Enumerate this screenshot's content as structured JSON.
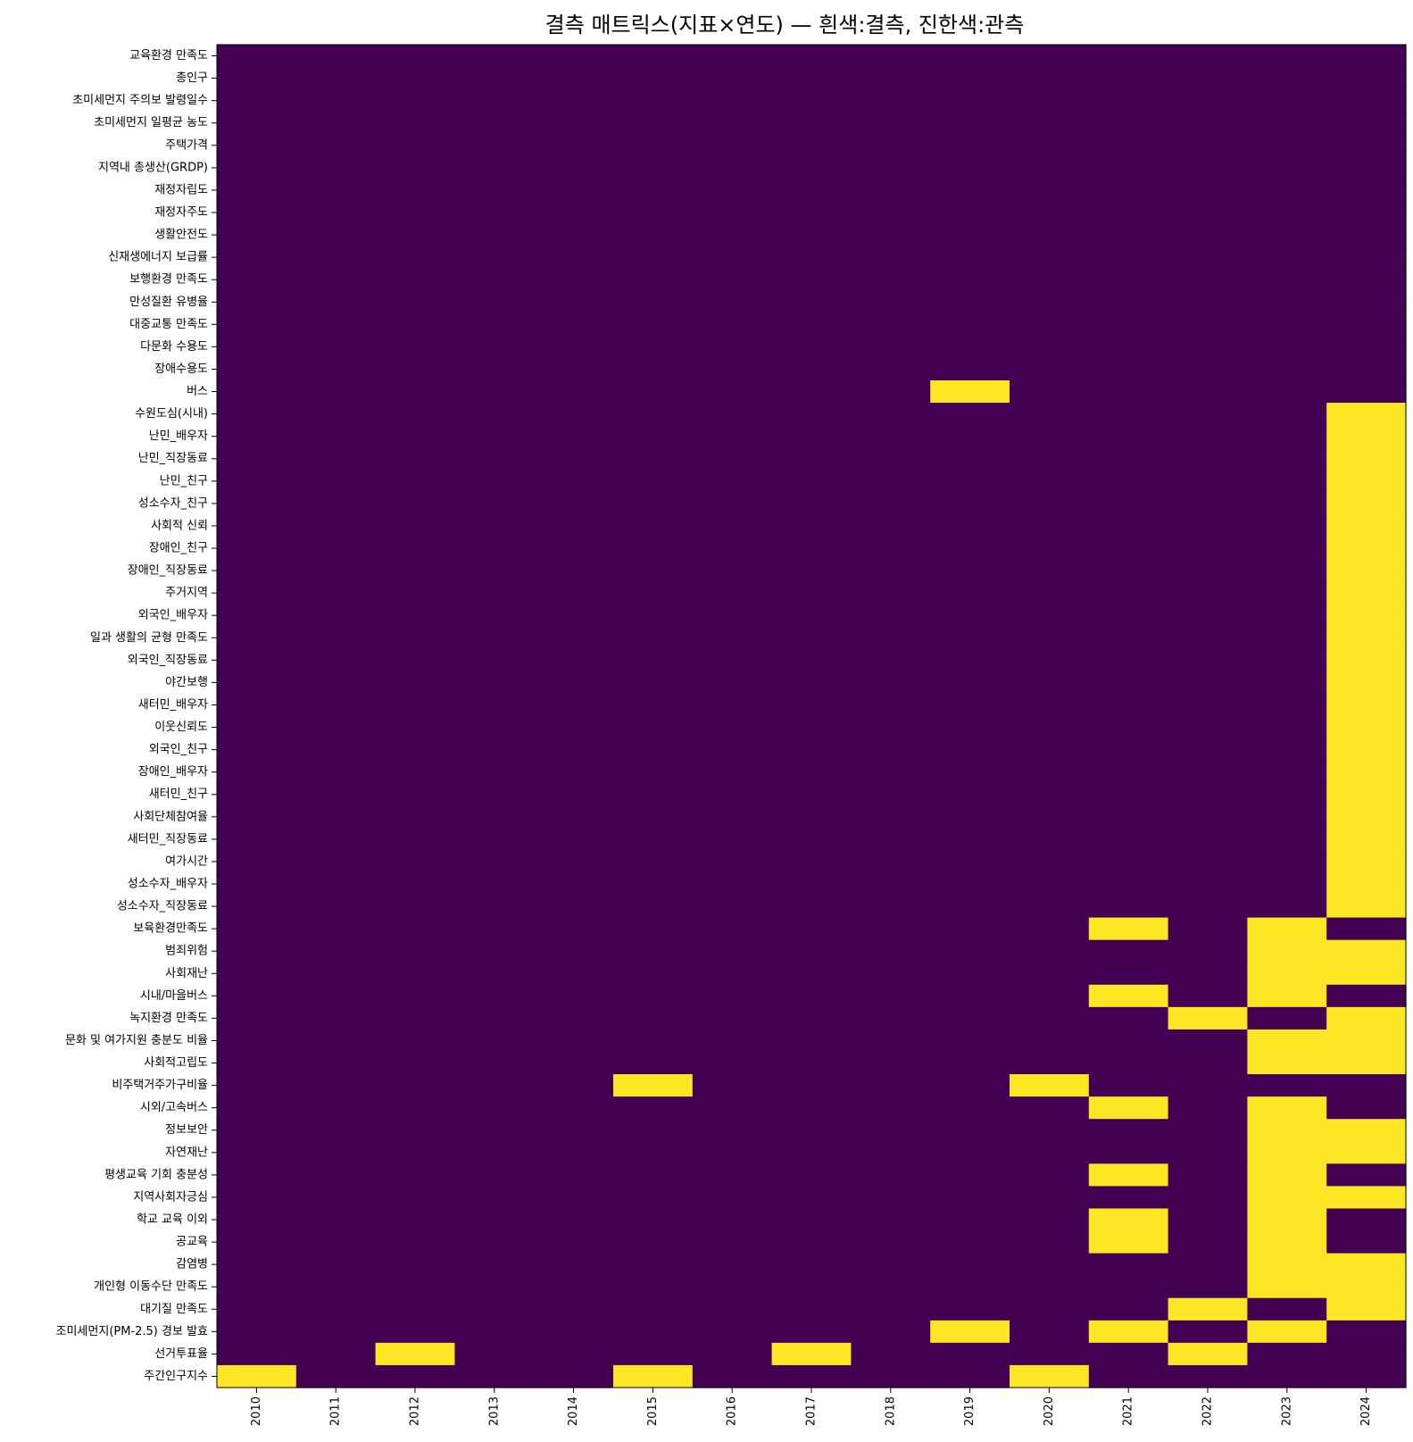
{
  "chart_data": {
    "type": "heatmap",
    "title": "결측 매트릭스(지표×연도) — 흰색:결측, 진한색:관측",
    "xlabel": "",
    "ylabel": "",
    "colors": {
      "observed": "#440154",
      "missing": "#fde725"
    },
    "x": [
      "2010",
      "2011",
      "2012",
      "2013",
      "2014",
      "2015",
      "2016",
      "2017",
      "2018",
      "2019",
      "2020",
      "2021",
      "2022",
      "2023",
      "2024"
    ],
    "y": [
      "교육환경 만족도",
      "총인구",
      "초미세먼지 주의보 발령일수",
      "초미세먼지 일평균 농도",
      "주택가격",
      "지역내 총생산(GRDP)",
      "재정자립도",
      "재정자주도",
      "생활안전도",
      "신재생에너지 보급률",
      "보행환경 만족도",
      "만성질환 유병율",
      "대중교통 만족도",
      "다문화 수용도",
      "장애수용도",
      "버스",
      "수원도심(시내)",
      "난민_배우자",
      "난민_직장동료",
      "난민_친구",
      "성소수자_친구",
      "사회적 신뢰",
      "장애인_친구",
      "장애인_직장동료",
      "주거지역",
      "외국인_배우자",
      "일과 생활의 균형 만족도",
      "외국인_직장동료",
      "야간보행",
      "새터민_배우자",
      "이웃신뢰도",
      "외국인_친구",
      "장애인_배우자",
      "새터민_친구",
      "사회단체참여율",
      "새터민_직장동료",
      "여가시간",
      "성소수자_배우자",
      "성소수자_직장동료",
      "보육환경만족도",
      "범죄위험",
      "사회재난",
      "시내/마을버스",
      "녹지환경 만족도",
      "문화 및 여가지원 충분도 비율",
      "사회적고립도",
      "비주택거주가구비율",
      "시외/고속버스",
      "정보보안",
      "자연재난",
      "평생교육 기회 충분성",
      "지역사회자긍심",
      "학교 교육 이외",
      "공교육",
      "감염병",
      "개인형 이동수단 만족도",
      "대기질 만족도",
      "조미세먼지(PM-2.5) 경보 발효",
      "선거투표율",
      "주간인구지수"
    ],
    "missing": [
      [
        0,
        0,
        0,
        0,
        0,
        0,
        0,
        0,
        0,
        0,
        0,
        0,
        0,
        0,
        0
      ],
      [
        0,
        0,
        0,
        0,
        0,
        0,
        0,
        0,
        0,
        0,
        0,
        0,
        0,
        0,
        0
      ],
      [
        0,
        0,
        0,
        0,
        0,
        0,
        0,
        0,
        0,
        0,
        0,
        0,
        0,
        0,
        0
      ],
      [
        0,
        0,
        0,
        0,
        0,
        0,
        0,
        0,
        0,
        0,
        0,
        0,
        0,
        0,
        0
      ],
      [
        0,
        0,
        0,
        0,
        0,
        0,
        0,
        0,
        0,
        0,
        0,
        0,
        0,
        0,
        0
      ],
      [
        0,
        0,
        0,
        0,
        0,
        0,
        0,
        0,
        0,
        0,
        0,
        0,
        0,
        0,
        0
      ],
      [
        0,
        0,
        0,
        0,
        0,
        0,
        0,
        0,
        0,
        0,
        0,
        0,
        0,
        0,
        0
      ],
      [
        0,
        0,
        0,
        0,
        0,
        0,
        0,
        0,
        0,
        0,
        0,
        0,
        0,
        0,
        0
      ],
      [
        0,
        0,
        0,
        0,
        0,
        0,
        0,
        0,
        0,
        0,
        0,
        0,
        0,
        0,
        0
      ],
      [
        0,
        0,
        0,
        0,
        0,
        0,
        0,
        0,
        0,
        0,
        0,
        0,
        0,
        0,
        0
      ],
      [
        0,
        0,
        0,
        0,
        0,
        0,
        0,
        0,
        0,
        0,
        0,
        0,
        0,
        0,
        0
      ],
      [
        0,
        0,
        0,
        0,
        0,
        0,
        0,
        0,
        0,
        0,
        0,
        0,
        0,
        0,
        0
      ],
      [
        0,
        0,
        0,
        0,
        0,
        0,
        0,
        0,
        0,
        0,
        0,
        0,
        0,
        0,
        0
      ],
      [
        0,
        0,
        0,
        0,
        0,
        0,
        0,
        0,
        0,
        0,
        0,
        0,
        0,
        0,
        0
      ],
      [
        0,
        0,
        0,
        0,
        0,
        0,
        0,
        0,
        0,
        0,
        0,
        0,
        0,
        0,
        0
      ],
      [
        0,
        0,
        0,
        0,
        0,
        0,
        0,
        0,
        0,
        1,
        0,
        0,
        0,
        0,
        0
      ],
      [
        0,
        0,
        0,
        0,
        0,
        0,
        0,
        0,
        0,
        0,
        0,
        0,
        0,
        0,
        1
      ],
      [
        0,
        0,
        0,
        0,
        0,
        0,
        0,
        0,
        0,
        0,
        0,
        0,
        0,
        0,
        1
      ],
      [
        0,
        0,
        0,
        0,
        0,
        0,
        0,
        0,
        0,
        0,
        0,
        0,
        0,
        0,
        1
      ],
      [
        0,
        0,
        0,
        0,
        0,
        0,
        0,
        0,
        0,
        0,
        0,
        0,
        0,
        0,
        1
      ],
      [
        0,
        0,
        0,
        0,
        0,
        0,
        0,
        0,
        0,
        0,
        0,
        0,
        0,
        0,
        1
      ],
      [
        0,
        0,
        0,
        0,
        0,
        0,
        0,
        0,
        0,
        0,
        0,
        0,
        0,
        0,
        1
      ],
      [
        0,
        0,
        0,
        0,
        0,
        0,
        0,
        0,
        0,
        0,
        0,
        0,
        0,
        0,
        1
      ],
      [
        0,
        0,
        0,
        0,
        0,
        0,
        0,
        0,
        0,
        0,
        0,
        0,
        0,
        0,
        1
      ],
      [
        0,
        0,
        0,
        0,
        0,
        0,
        0,
        0,
        0,
        0,
        0,
        0,
        0,
        0,
        1
      ],
      [
        0,
        0,
        0,
        0,
        0,
        0,
        0,
        0,
        0,
        0,
        0,
        0,
        0,
        0,
        1
      ],
      [
        0,
        0,
        0,
        0,
        0,
        0,
        0,
        0,
        0,
        0,
        0,
        0,
        0,
        0,
        1
      ],
      [
        0,
        0,
        0,
        0,
        0,
        0,
        0,
        0,
        0,
        0,
        0,
        0,
        0,
        0,
        1
      ],
      [
        0,
        0,
        0,
        0,
        0,
        0,
        0,
        0,
        0,
        0,
        0,
        0,
        0,
        0,
        1
      ],
      [
        0,
        0,
        0,
        0,
        0,
        0,
        0,
        0,
        0,
        0,
        0,
        0,
        0,
        0,
        1
      ],
      [
        0,
        0,
        0,
        0,
        0,
        0,
        0,
        0,
        0,
        0,
        0,
        0,
        0,
        0,
        1
      ],
      [
        0,
        0,
        0,
        0,
        0,
        0,
        0,
        0,
        0,
        0,
        0,
        0,
        0,
        0,
        1
      ],
      [
        0,
        0,
        0,
        0,
        0,
        0,
        0,
        0,
        0,
        0,
        0,
        0,
        0,
        0,
        1
      ],
      [
        0,
        0,
        0,
        0,
        0,
        0,
        0,
        0,
        0,
        0,
        0,
        0,
        0,
        0,
        1
      ],
      [
        0,
        0,
        0,
        0,
        0,
        0,
        0,
        0,
        0,
        0,
        0,
        0,
        0,
        0,
        1
      ],
      [
        0,
        0,
        0,
        0,
        0,
        0,
        0,
        0,
        0,
        0,
        0,
        0,
        0,
        0,
        1
      ],
      [
        0,
        0,
        0,
        0,
        0,
        0,
        0,
        0,
        0,
        0,
        0,
        0,
        0,
        0,
        1
      ],
      [
        0,
        0,
        0,
        0,
        0,
        0,
        0,
        0,
        0,
        0,
        0,
        0,
        0,
        0,
        1
      ],
      [
        0,
        0,
        0,
        0,
        0,
        0,
        0,
        0,
        0,
        0,
        0,
        0,
        0,
        0,
        1
      ],
      [
        0,
        0,
        0,
        0,
        0,
        0,
        0,
        0,
        0,
        0,
        0,
        1,
        0,
        1,
        0
      ],
      [
        0,
        0,
        0,
        0,
        0,
        0,
        0,
        0,
        0,
        0,
        0,
        0,
        0,
        1,
        1
      ],
      [
        0,
        0,
        0,
        0,
        0,
        0,
        0,
        0,
        0,
        0,
        0,
        0,
        0,
        1,
        1
      ],
      [
        0,
        0,
        0,
        0,
        0,
        0,
        0,
        0,
        0,
        0,
        0,
        1,
        0,
        1,
        0
      ],
      [
        0,
        0,
        0,
        0,
        0,
        0,
        0,
        0,
        0,
        0,
        0,
        0,
        1,
        0,
        1
      ],
      [
        0,
        0,
        0,
        0,
        0,
        0,
        0,
        0,
        0,
        0,
        0,
        0,
        0,
        1,
        1
      ],
      [
        0,
        0,
        0,
        0,
        0,
        0,
        0,
        0,
        0,
        0,
        0,
        0,
        0,
        1,
        1
      ],
      [
        0,
        0,
        0,
        0,
        0,
        1,
        0,
        0,
        0,
        0,
        1,
        0,
        0,
        0,
        0
      ],
      [
        0,
        0,
        0,
        0,
        0,
        0,
        0,
        0,
        0,
        0,
        0,
        1,
        0,
        1,
        0
      ],
      [
        0,
        0,
        0,
        0,
        0,
        0,
        0,
        0,
        0,
        0,
        0,
        0,
        0,
        1,
        1
      ],
      [
        0,
        0,
        0,
        0,
        0,
        0,
        0,
        0,
        0,
        0,
        0,
        0,
        0,
        1,
        1
      ],
      [
        0,
        0,
        0,
        0,
        0,
        0,
        0,
        0,
        0,
        0,
        0,
        1,
        0,
        1,
        0
      ],
      [
        0,
        0,
        0,
        0,
        0,
        0,
        0,
        0,
        0,
        0,
        0,
        0,
        0,
        1,
        1
      ],
      [
        0,
        0,
        0,
        0,
        0,
        0,
        0,
        0,
        0,
        0,
        0,
        1,
        0,
        1,
        0
      ],
      [
        0,
        0,
        0,
        0,
        0,
        0,
        0,
        0,
        0,
        0,
        0,
        1,
        0,
        1,
        0
      ],
      [
        0,
        0,
        0,
        0,
        0,
        0,
        0,
        0,
        0,
        0,
        0,
        0,
        0,
        1,
        1
      ],
      [
        0,
        0,
        0,
        0,
        0,
        0,
        0,
        0,
        0,
        0,
        0,
        0,
        0,
        1,
        1
      ],
      [
        0,
        0,
        0,
        0,
        0,
        0,
        0,
        0,
        0,
        0,
        0,
        0,
        1,
        0,
        1
      ],
      [
        0,
        0,
        0,
        0,
        0,
        0,
        0,
        0,
        0,
        1,
        0,
        1,
        0,
        1,
        0
      ],
      [
        0,
        0,
        1,
        0,
        0,
        0,
        0,
        1,
        0,
        0,
        0,
        0,
        1,
        0,
        0
      ],
      [
        1,
        0,
        0,
        0,
        0,
        1,
        0,
        0,
        0,
        0,
        1,
        0,
        0,
        0,
        0
      ]
    ],
    "grid": false,
    "legend": "none"
  }
}
